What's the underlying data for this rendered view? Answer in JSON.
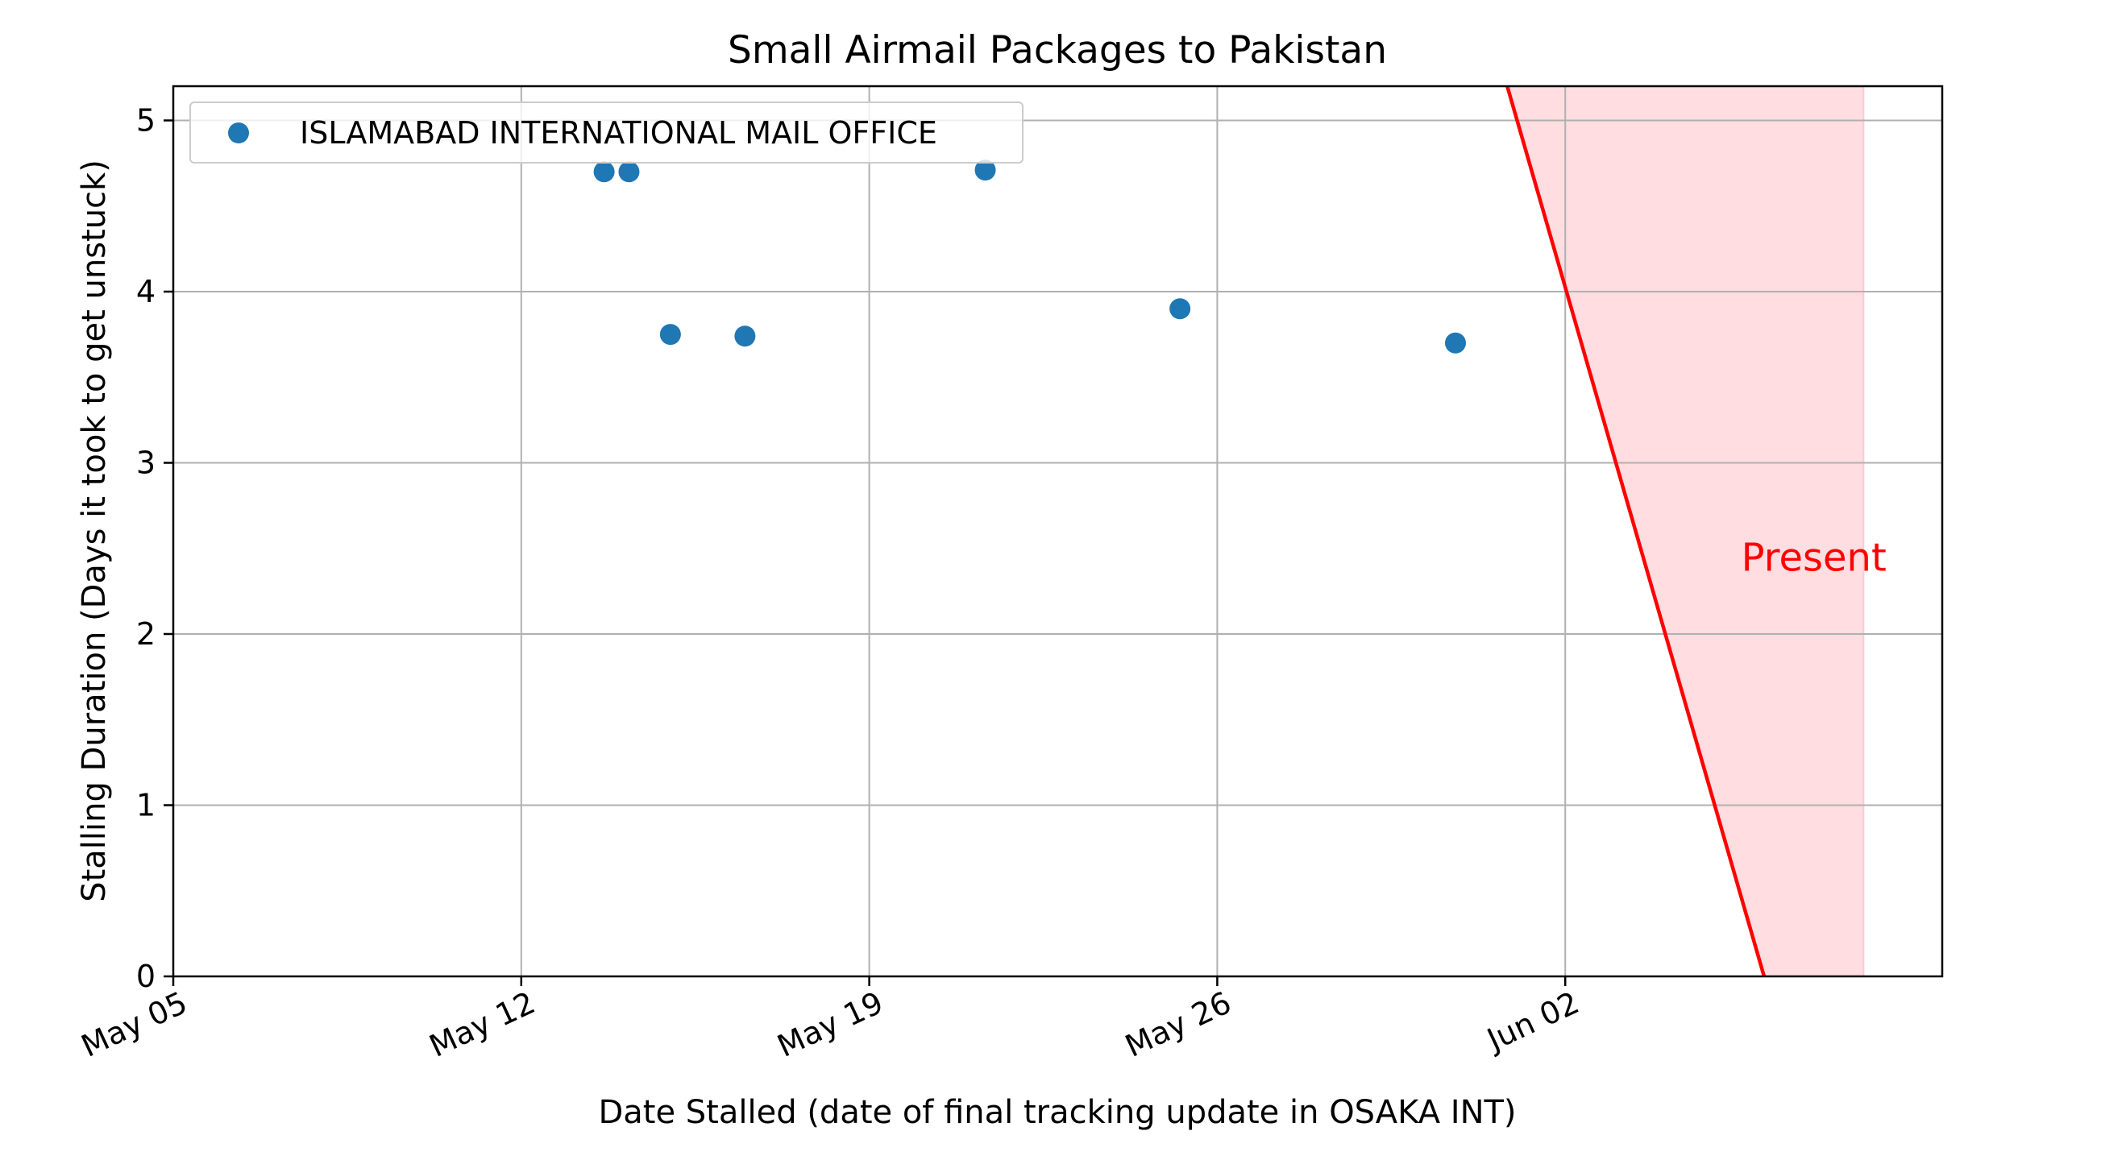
{
  "chart_data": {
    "type": "scatter",
    "title": "Small Airmail Packages to Pakistan",
    "xlabel": "Date Stalled (date of final tracking update in OSAKA INT)",
    "ylabel": "Stalling Duration (Days it took to get unstuck)",
    "x_type": "date",
    "xlim": [
      "2024-05-05",
      "2024-06-09T14:00"
    ],
    "ylim": [
      0,
      5.2
    ],
    "x_ticks": [
      "2024-05-05",
      "2024-05-12",
      "2024-05-19",
      "2024-05-26",
      "2024-06-02"
    ],
    "x_tick_labels": [
      "May 05",
      "May 12",
      "May 19",
      "May 26",
      "Jun 02"
    ],
    "y_ticks": [
      0,
      1,
      2,
      3,
      4,
      5
    ],
    "y_tick_labels": [
      "0",
      "1",
      "2",
      "3",
      "4",
      "5"
    ],
    "grid": true,
    "legend_position": "upper left",
    "series": [
      {
        "name": "ISLAMABAD INTERNATIONAL MAIL OFFICE",
        "color": "#1f77b4",
        "points": [
          {
            "x": "2024-05-13T16:00",
            "y": 4.7
          },
          {
            "x": "2024-05-14T04:00",
            "y": 4.7
          },
          {
            "x": "2024-05-15T00:00",
            "y": 3.75
          },
          {
            "x": "2024-05-16T12:00",
            "y": 3.74
          },
          {
            "x": "2024-05-21T08:00",
            "y": 4.71
          },
          {
            "x": "2024-05-25T06:00",
            "y": 3.9
          },
          {
            "x": "2024-05-30T19:00",
            "y": 3.7
          }
        ]
      }
    ],
    "present_line": {
      "color": "#ff0000",
      "points": [
        {
          "x": "2024-05-31T20:00",
          "y": 5.2
        },
        {
          "x": "2024-06-06T00:00",
          "y": 0
        }
      ]
    },
    "present_region": {
      "color": "#ffdde1",
      "x_end": "2024-06-08T00:00"
    },
    "annotation": {
      "text": "Present",
      "x": "2024-06-05T13:00",
      "y": 2.37,
      "color": "#ff0000"
    }
  }
}
